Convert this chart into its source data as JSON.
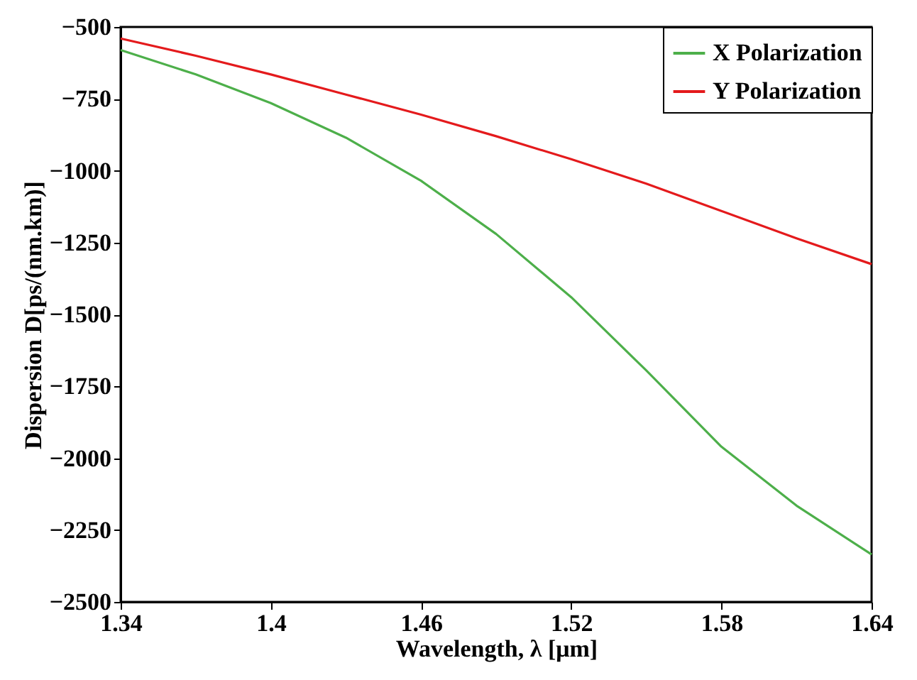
{
  "chart_data": {
    "type": "line",
    "xlabel": "Wavelength, λ [μm]",
    "ylabel": "Dispersion D[ps/(nm.km)]",
    "x": [
      1.34,
      1.37,
      1.4,
      1.43,
      1.46,
      1.49,
      1.52,
      1.55,
      1.58,
      1.61,
      1.64
    ],
    "series": [
      {
        "name": "X Polarization",
        "color": "#4daf4a",
        "values": [
          -580,
          -665,
          -765,
          -885,
          -1035,
          -1220,
          -1440,
          -1695,
          -1960,
          -2165,
          -2335
        ]
      },
      {
        "name": "Y Polarization",
        "color": "#e41a1c",
        "values": [
          -540,
          -600,
          -665,
          -735,
          -805,
          -880,
          -960,
          -1045,
          -1140,
          -1235,
          -1325
        ]
      }
    ],
    "xlim": [
      1.34,
      1.64
    ],
    "xticks": [
      1.34,
      1.4,
      1.46,
      1.52,
      1.58,
      1.64
    ],
    "ylim": [
      -2500,
      -500
    ],
    "yticks": [
      -2500,
      -2250,
      -2000,
      -1750,
      -1500,
      -1250,
      -1000,
      -750,
      -500
    ],
    "grid": false,
    "legend": "top right",
    "marker": "none",
    "line_style": "solid"
  }
}
